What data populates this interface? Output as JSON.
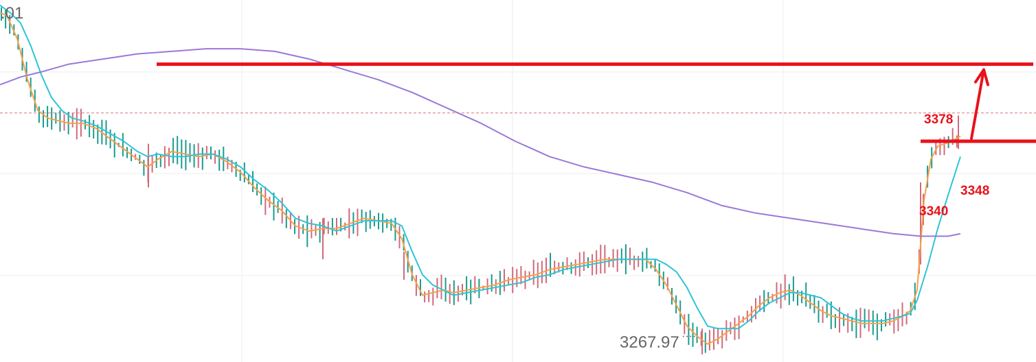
{
  "chart_data": {
    "type": "candlestick",
    "title": "",
    "ylim": [
      3262,
      3403
    ],
    "grid": true,
    "colors": {
      "up": "#d06a7a",
      "down": "#1a9b8f",
      "ma_fast": "#f7a04b",
      "ma_mid": "#2ec4d6",
      "ma_slow": "#9a78d8",
      "level_line": "#e8121b",
      "current_price_line": "#d9707a",
      "grid": "#eeeeee"
    },
    "price_labels": {
      "top_partial": ".01",
      "low": "3267.97"
    },
    "candles": [],
    "moving_averages": [
      {
        "key": "fast",
        "points": [
          [
            0,
            3398
          ],
          [
            10,
            3397
          ],
          [
            25,
            3388
          ],
          [
            40,
            3372
          ],
          [
            55,
            3360
          ],
          [
            70,
            3357
          ],
          [
            85,
            3356
          ],
          [
            100,
            3355
          ],
          [
            120,
            3355
          ],
          [
            140,
            3353
          ],
          [
            160,
            3349
          ],
          [
            180,
            3345
          ],
          [
            200,
            3341
          ],
          [
            215,
            3338
          ],
          [
            230,
            3341
          ],
          [
            250,
            3344
          ],
          [
            270,
            3343
          ],
          [
            290,
            3342
          ],
          [
            310,
            3343
          ],
          [
            330,
            3340
          ],
          [
            350,
            3336
          ],
          [
            370,
            3330
          ],
          [
            390,
            3325
          ],
          [
            410,
            3321
          ],
          [
            430,
            3315
          ],
          [
            450,
            3313
          ],
          [
            470,
            3314
          ],
          [
            490,
            3314
          ],
          [
            510,
            3316
          ],
          [
            530,
            3318
          ],
          [
            550,
            3317
          ],
          [
            570,
            3316
          ],
          [
            585,
            3310
          ],
          [
            600,
            3296
          ],
          [
            615,
            3288
          ],
          [
            630,
            3289
          ],
          [
            645,
            3290
          ],
          [
            660,
            3289
          ],
          [
            680,
            3290
          ],
          [
            700,
            3291
          ],
          [
            720,
            3292
          ],
          [
            740,
            3294
          ],
          [
            760,
            3295
          ],
          [
            780,
            3296
          ],
          [
            800,
            3298
          ],
          [
            820,
            3299
          ],
          [
            840,
            3300
          ],
          [
            860,
            3301
          ],
          [
            880,
            3302
          ],
          [
            900,
            3302
          ],
          [
            920,
            3302
          ],
          [
            940,
            3302
          ],
          [
            955,
            3298
          ],
          [
            970,
            3292
          ],
          [
            985,
            3284
          ],
          [
            1000,
            3276
          ],
          [
            1015,
            3272
          ],
          [
            1030,
            3269
          ],
          [
            1045,
            3271
          ],
          [
            1060,
            3274
          ],
          [
            1075,
            3277
          ],
          [
            1090,
            3280
          ],
          [
            1105,
            3284
          ],
          [
            1120,
            3287
          ],
          [
            1135,
            3289
          ],
          [
            1150,
            3290
          ],
          [
            1165,
            3288
          ],
          [
            1180,
            3285
          ],
          [
            1195,
            3282
          ],
          [
            1210,
            3280
          ],
          [
            1225,
            3279
          ],
          [
            1240,
            3278
          ],
          [
            1255,
            3277
          ],
          [
            1270,
            3277
          ],
          [
            1285,
            3277
          ],
          [
            1300,
            3278
          ],
          [
            1315,
            3280
          ],
          [
            1325,
            3282
          ],
          [
            1335,
            3290
          ],
          [
            1345,
            3325
          ],
          [
            1355,
            3341
          ],
          [
            1365,
            3346
          ],
          [
            1375,
            3347
          ],
          [
            1385,
            3348
          ],
          [
            1398,
            3350
          ]
        ]
      },
      {
        "key": "mid",
        "points": [
          [
            0,
            3401
          ],
          [
            15,
            3398
          ],
          [
            30,
            3394
          ],
          [
            45,
            3385
          ],
          [
            60,
            3374
          ],
          [
            75,
            3365
          ],
          [
            90,
            3360
          ],
          [
            105,
            3357
          ],
          [
            120,
            3356
          ],
          [
            140,
            3354
          ],
          [
            160,
            3351
          ],
          [
            180,
            3348
          ],
          [
            200,
            3344
          ],
          [
            215,
            3342
          ],
          [
            230,
            3343
          ],
          [
            250,
            3342
          ],
          [
            270,
            3342
          ],
          [
            290,
            3343
          ],
          [
            310,
            3343
          ],
          [
            330,
            3341
          ],
          [
            350,
            3338
          ],
          [
            370,
            3333
          ],
          [
            390,
            3329
          ],
          [
            410,
            3324
          ],
          [
            430,
            3318
          ],
          [
            450,
            3316
          ],
          [
            470,
            3315
          ],
          [
            490,
            3313
          ],
          [
            510,
            3315
          ],
          [
            530,
            3317
          ],
          [
            550,
            3317
          ],
          [
            570,
            3317
          ],
          [
            585,
            3315
          ],
          [
            600,
            3305
          ],
          [
            615,
            3296
          ],
          [
            630,
            3292
          ],
          [
            645,
            3290
          ],
          [
            660,
            3288
          ],
          [
            680,
            3289
          ],
          [
            700,
            3290
          ],
          [
            720,
            3291
          ],
          [
            740,
            3292
          ],
          [
            760,
            3293
          ],
          [
            780,
            3295
          ],
          [
            800,
            3296
          ],
          [
            820,
            3298
          ],
          [
            840,
            3299
          ],
          [
            860,
            3300
          ],
          [
            880,
            3301
          ],
          [
            900,
            3302
          ],
          [
            920,
            3302
          ],
          [
            940,
            3302
          ],
          [
            955,
            3302
          ],
          [
            970,
            3300
          ],
          [
            985,
            3297
          ],
          [
            1000,
            3291
          ],
          [
            1015,
            3283
          ],
          [
            1030,
            3276
          ],
          [
            1045,
            3275
          ],
          [
            1060,
            3275
          ],
          [
            1075,
            3275
          ],
          [
            1090,
            3278
          ],
          [
            1105,
            3282
          ],
          [
            1120,
            3285
          ],
          [
            1135,
            3287
          ],
          [
            1150,
            3289
          ],
          [
            1165,
            3289
          ],
          [
            1180,
            3288
          ],
          [
            1195,
            3287
          ],
          [
            1210,
            3284
          ],
          [
            1225,
            3281
          ],
          [
            1240,
            3279
          ],
          [
            1255,
            3278
          ],
          [
            1270,
            3278
          ],
          [
            1285,
            3278
          ],
          [
            1300,
            3279
          ],
          [
            1315,
            3280
          ],
          [
            1325,
            3281
          ],
          [
            1335,
            3286
          ],
          [
            1350,
            3299
          ],
          [
            1365,
            3314
          ],
          [
            1380,
            3327
          ],
          [
            1398,
            3342
          ]
        ]
      },
      {
        "key": "slow",
        "points": [
          [
            0,
            3370
          ],
          [
            30,
            3373
          ],
          [
            60,
            3375
          ],
          [
            100,
            3378
          ],
          [
            150,
            3380
          ],
          [
            200,
            3382
          ],
          [
            250,
            3383
          ],
          [
            300,
            3384
          ],
          [
            350,
            3384
          ],
          [
            400,
            3383
          ],
          [
            450,
            3380
          ],
          [
            500,
            3376
          ],
          [
            550,
            3372
          ],
          [
            600,
            3367
          ],
          [
            650,
            3361
          ],
          [
            700,
            3355
          ],
          [
            750,
            3348
          ],
          [
            800,
            3342
          ],
          [
            850,
            3338
          ],
          [
            900,
            3335
          ],
          [
            950,
            3332
          ],
          [
            1000,
            3328
          ],
          [
            1050,
            3323
          ],
          [
            1100,
            3320
          ],
          [
            1150,
            3318
          ],
          [
            1200,
            3316
          ],
          [
            1250,
            3314
          ],
          [
            1300,
            3312
          ],
          [
            1340,
            3311
          ],
          [
            1360,
            3311
          ],
          [
            1380,
            3311
          ],
          [
            1398,
            3312
          ]
        ]
      }
    ],
    "levels": [
      {
        "label": "3378",
        "price": 3378,
        "x_start": 228,
        "x_end": 1504
      },
      {
        "label": "3348",
        "price": 3348,
        "x_start": 1340,
        "x_end": 1508
      }
    ],
    "current_price": 3359,
    "annotation": {
      "label": "3340"
    }
  }
}
